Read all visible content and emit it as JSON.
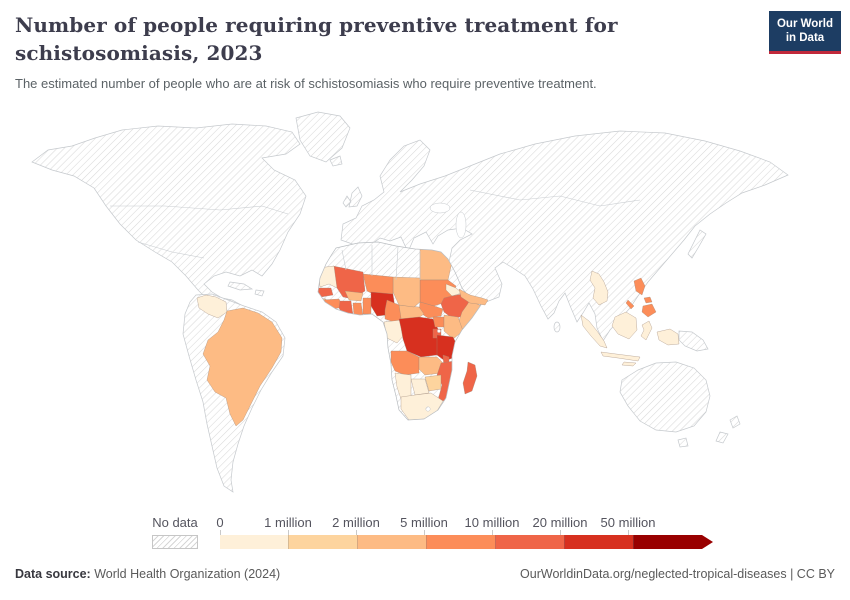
{
  "header": {
    "title": "Number of people requiring preventive treatment for schistosomiasis, 2023",
    "subtitle": "The estimated number of people who are at risk of schistosomiasis who require preventive treatment.",
    "logo": {
      "line1": "Our World",
      "line2": "in Data"
    }
  },
  "legend": {
    "no_data_label": "No data",
    "tick_labels": [
      "0",
      "1 million",
      "2 million",
      "5 million",
      "10 million",
      "20 million",
      "50 million"
    ],
    "band_colors": [
      "#fef0d9",
      "#fdd49e",
      "#fdbb84",
      "#fc8d59",
      "#ef6548",
      "#d7301f",
      "#990000"
    ]
  },
  "footer": {
    "source_label": "Data source:",
    "source_value": " World Health Organization (2024)",
    "credit": "OurWorldinData.org/neglected-tropical-diseases | CC BY"
  },
  "colors": {
    "logo_bg": "#1d3d63",
    "logo_accent": "#c1293b",
    "title_text": "#3d3d4d",
    "subtitle_text": "#5b6266",
    "legend_text": "#54545e",
    "hatch_line": "#d6d6d6",
    "coastline": "#c5c9cd"
  },
  "chart_data": {
    "type": "choropleth_map",
    "title": "Number of people requiring preventive treatment for schistosomiasis",
    "year": 2023,
    "unit": "people at risk requiring preventive treatment",
    "bins": [
      "0-1 million",
      "1-2 million",
      "2-5 million",
      "5-10 million",
      "10-20 million",
      "20-50 million",
      "50 million+"
    ],
    "countries_by_bin": {
      "20-50 million": [
        "Nigeria",
        "Democratic Republic of Congo",
        "Tanzania"
      ],
      "10-20 million": [
        "Mali",
        "Senegal",
        "Liberia",
        "Cote d'Ivoire",
        "Ethiopia",
        "Mozambique",
        "Madagascar",
        "Malawi",
        "Rwanda",
        "Burundi"
      ],
      "5-10 million": [
        "Niger",
        "Sudan",
        "South Sudan",
        "Guinea",
        "Sierra Leone",
        "Ghana",
        "Togo",
        "Benin",
        "Cameroon",
        "Uganda",
        "Angola",
        "Philippines"
      ],
      "2-5 million": [
        "Egypt",
        "Chad",
        "Central African Republic",
        "Burkina Faso",
        "Kenya",
        "Somalia",
        "Zambia",
        "Brazil",
        "Yemen"
      ],
      "1-2 million": [
        "Zimbabwe",
        "Guinea-Bissau"
      ],
      "0-1 million": [
        "Venezuela",
        "Mauritania",
        "Eritrea",
        "Gabon",
        "Republic of Congo",
        "Equatorial Guinea",
        "Namibia",
        "Botswana",
        "South Africa",
        "Laos",
        "Cambodia",
        "Indonesia"
      ],
      "no_data": [
        "United States",
        "Canada",
        "Mexico",
        "Greenland",
        "Europe",
        "Russia",
        "China",
        "India",
        "Central Asia",
        "Saudi Arabia",
        "Iran",
        "Turkey",
        "Australia",
        "New Zealand",
        "Argentina",
        "Chile",
        "Peru",
        "Colombia",
        "Morocco",
        "Algeria",
        "Libya",
        "Tunisia",
        "Papua New Guinea",
        "Japan",
        "Vietnam",
        "Thailand",
        "Myanmar"
      ]
    }
  }
}
